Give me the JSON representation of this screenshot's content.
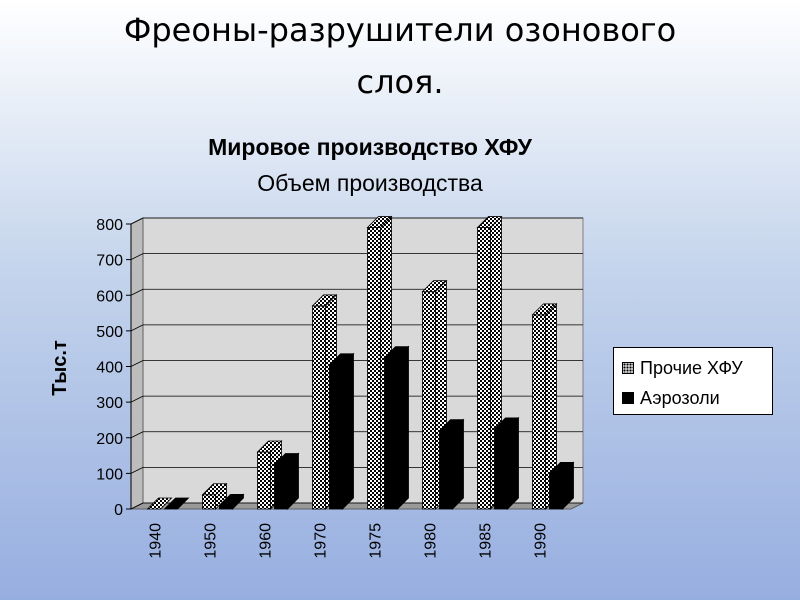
{
  "slide": {
    "title_line1": "Фреоны-разрушители озонового",
    "title_line2": "слоя."
  },
  "chart_data": {
    "type": "bar",
    "title": "Мировое производство ХФУ",
    "subtitle": "Объем производства",
    "xlabel": "",
    "ylabel": "Тыс.т",
    "ylim": [
      0,
      800
    ],
    "yticks": [
      0,
      100,
      200,
      300,
      400,
      500,
      600,
      700,
      800
    ],
    "categories": [
      "1940",
      "1950",
      "1960",
      "1970",
      "1975",
      "1980",
      "1985",
      "1990"
    ],
    "series": [
      {
        "name": "Прочие ХФУ",
        "values": [
          0,
          40,
          160,
          570,
          790,
          610,
          790,
          545
        ],
        "color": "#ffffff",
        "pattern": "checker"
      },
      {
        "name": "Аэрозоли",
        "values": [
          0,
          10,
          125,
          405,
          425,
          220,
          225,
          100
        ],
        "color": "#000000",
        "pattern": "solid"
      }
    ],
    "grid": true,
    "legend_position": "right",
    "plot_background": "#d9d9d9"
  }
}
